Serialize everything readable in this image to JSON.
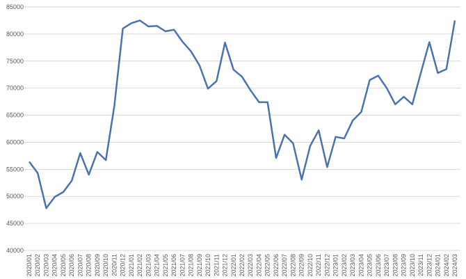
{
  "chart_data": {
    "type": "line",
    "categories": [
      "2020/01",
      "2020/02",
      "2020/03",
      "2020/04",
      "2020/05",
      "2020/06",
      "2020/07",
      "2020/08",
      "2020/09",
      "2020/10",
      "2020/11",
      "2020/12",
      "2021/01",
      "2021/02",
      "2021/03",
      "2021/04",
      "2021/05",
      "2021/06",
      "2021/07",
      "2021/08",
      "2021/09",
      "2021/10",
      "2021/11",
      "2021/12",
      "2022/01",
      "2022/02",
      "2022/03",
      "2022/04",
      "2022/05",
      "2022/06",
      "2022/07",
      "2022/08",
      "2022/09",
      "2022/10",
      "2022/11",
      "2022/12",
      "2023/01",
      "2023/02",
      "2023/03",
      "2023/04",
      "2023/05",
      "2023/06",
      "2023/07",
      "2023/08",
      "2023/09",
      "2023/10",
      "2023/11",
      "2023/12",
      "2024/01",
      "2024/02",
      "2024/03"
    ],
    "values": [
      56400,
      54300,
      47800,
      49900,
      50800,
      52900,
      58000,
      54000,
      58200,
      56700,
      66700,
      81000,
      82000,
      82500,
      81400,
      81500,
      80500,
      80800,
      78600,
      76800,
      74200,
      69900,
      71300,
      78400,
      73400,
      72100,
      69600,
      67400,
      67400,
      57100,
      61400,
      59800,
      53100,
      59300,
      62200,
      55400,
      61000,
      60700,
      64000,
      65600,
      71500,
      72300,
      70000,
      67000,
      68400,
      67000,
      72800,
      78500,
      72800,
      73500,
      82500
    ],
    "color": "#4a72b0",
    "ylim": [
      40000,
      85000
    ],
    "yticks": [
      40000,
      45000,
      50000,
      55000,
      60000,
      65000,
      70000,
      75000,
      80000,
      85000
    ],
    "grid": true
  }
}
